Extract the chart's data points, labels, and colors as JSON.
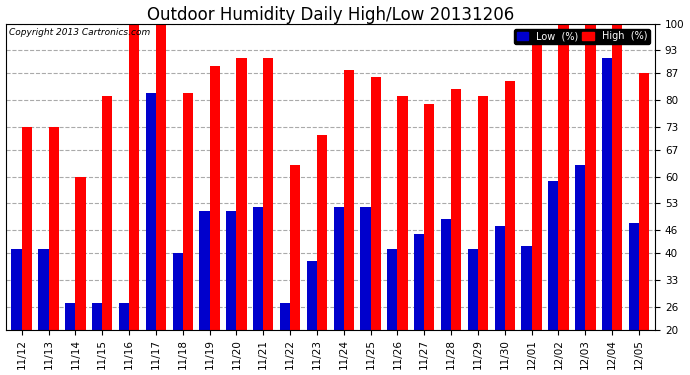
{
  "title": "Outdoor Humidity Daily High/Low 20131206",
  "copyright": "Copyright 2013 Cartronics.com",
  "dates": [
    "11/12",
    "11/13",
    "11/14",
    "11/15",
    "11/16",
    "11/17",
    "11/18",
    "11/19",
    "11/20",
    "11/21",
    "11/22",
    "11/23",
    "11/24",
    "11/25",
    "11/26",
    "11/27",
    "11/28",
    "11/29",
    "11/30",
    "12/01",
    "12/02",
    "12/03",
    "12/04",
    "12/05"
  ],
  "high": [
    73,
    73,
    60,
    81,
    100,
    100,
    82,
    89,
    91,
    91,
    63,
    71,
    88,
    86,
    81,
    79,
    83,
    81,
    85,
    95,
    100,
    100,
    100,
    87
  ],
  "low": [
    41,
    41,
    27,
    27,
    27,
    82,
    40,
    51,
    51,
    52,
    27,
    38,
    52,
    52,
    41,
    45,
    49,
    41,
    47,
    42,
    59,
    63,
    91,
    48
  ],
  "high_color": "#ff0000",
  "low_color": "#0000cc",
  "bg_color": "#ffffff",
  "grid_color": "#aaaaaa",
  "ylim": [
    20,
    100
  ],
  "ybase": 20,
  "yticks": [
    20,
    26,
    33,
    40,
    46,
    53,
    60,
    67,
    73,
    80,
    87,
    93,
    100
  ],
  "legend_low_label": "Low  (%)",
  "legend_high_label": "High  (%)",
  "title_fontsize": 12,
  "tick_fontsize": 7.5,
  "bar_width": 0.38
}
